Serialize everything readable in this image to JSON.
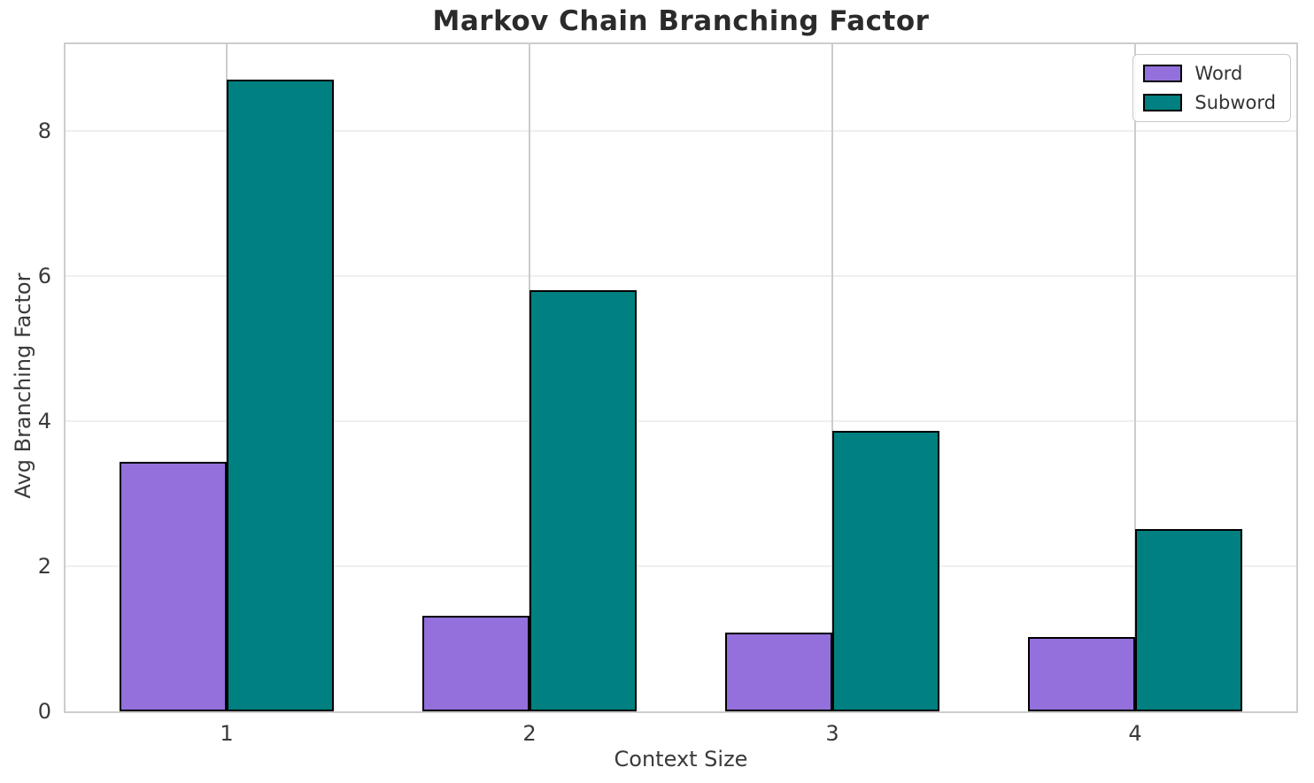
{
  "chart_data": {
    "type": "bar",
    "title": "Markov Chain Branching Factor",
    "xlabel": "Context Size",
    "ylabel": "Avg Branching Factor",
    "categories": [
      "1",
      "2",
      "3",
      "4"
    ],
    "series": [
      {
        "name": "Word",
        "color": "#9370db",
        "values": [
          3.44,
          1.32,
          1.08,
          1.02
        ]
      },
      {
        "name": "Subword",
        "color": "#008080",
        "values": [
          8.71,
          5.81,
          3.87,
          2.51
        ]
      }
    ],
    "ylim": [
      0,
      9.2
    ],
    "yticks": [
      0,
      2,
      4,
      6,
      8
    ],
    "bar_edge_color": "#000000",
    "grid": true,
    "legend_position": "upper right"
  }
}
